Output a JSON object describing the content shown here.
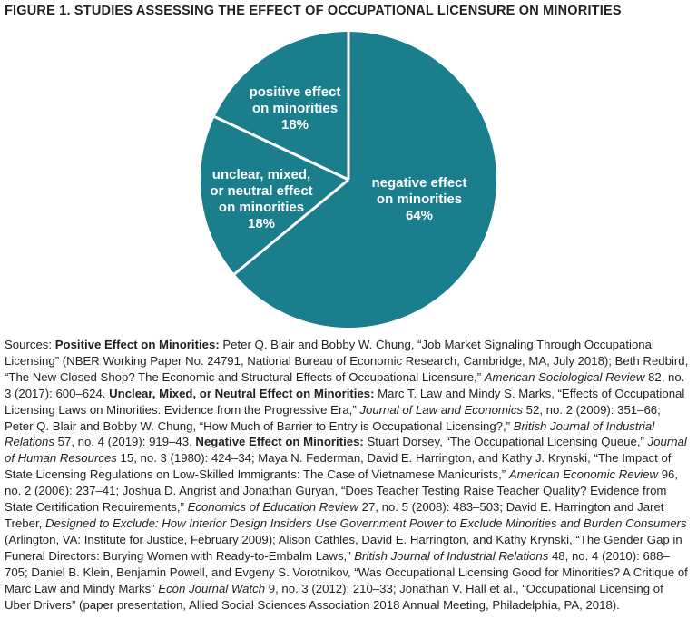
{
  "figure_title": "FIGURE 1. STUDIES ASSESSING THE EFFECT OF OCCUPATIONAL LICENSURE ON MINORITIES",
  "chart_data": {
    "type": "pie",
    "title": "FIGURE 1. STUDIES ASSESSING THE EFFECT OF OCCUPATIONAL LICENSURE ON MINORITIES",
    "start_angle_deg_from_top": 0,
    "direction": "clockwise",
    "legend_position": "labels-on-slices",
    "slices": [
      {
        "label": "negative effect on minorities",
        "value": 64,
        "percent_label": "64%",
        "label_lines": [
          "negative effect",
          "on minorities",
          "64%"
        ]
      },
      {
        "label": "unclear, mixed, or neutral effect on minorities",
        "value": 18,
        "percent_label": "18%",
        "label_lines": [
          "unclear, mixed,",
          "or neutral effect",
          "on minorities",
          "18%"
        ]
      },
      {
        "label": "positive effect on minorities",
        "value": 18,
        "percent_label": "18%",
        "label_lines": [
          "positive effect",
          "on minorities",
          "18%"
        ]
      }
    ],
    "colors": {
      "slice_fill": "#1B7E8C",
      "divider": "#FFFFFF",
      "label_text": "#FFFFFF",
      "title_text": "#231F20",
      "body_text": "#231F20"
    }
  },
  "sources": {
    "segments": [
      {
        "t": "Sources: ",
        "s": "n"
      },
      {
        "t": "Positive Effect on Minorities: ",
        "s": "b"
      },
      {
        "t": "Peter Q. Blair and Bobby W. Chung, “Job Market Signaling Through Occupational Licensing” (NBER Working Paper No. 24791, National Bureau of Economic Research, Cambridge, MA, July 2018); Beth Redbird, “The New Closed Shop? The Economic and Structural Effects of Occupational Licensure,” ",
        "s": "n"
      },
      {
        "t": "American Sociological Review",
        "s": "i"
      },
      {
        "t": " 82, no. 3 (2017): 600–624. ",
        "s": "n"
      },
      {
        "t": "Unclear, Mixed, or Neutral Effect on Minorities: ",
        "s": "b"
      },
      {
        "t": "Marc T. Law and Mindy S. Marks, “Effects of Occupational Licensing Laws on Minorities: Evidence from the Progressive Era,” ",
        "s": "n"
      },
      {
        "t": "Journal of Law and Economics",
        "s": "i"
      },
      {
        "t": " 52, no. 2 (2009): 351–66; Peter Q. Blair and Bobby W. Chung, “How Much of Barrier to Entry is Occupational Licensing?,” ",
        "s": "n"
      },
      {
        "t": "British Journal of Industrial Relations",
        "s": "i"
      },
      {
        "t": " 57, no. 4 (2019): 919–43. ",
        "s": "n"
      },
      {
        "t": "Negative Effect on Minorities: ",
        "s": "b"
      },
      {
        "t": "Stuart Dorsey, “The Occupational Licensing Queue,” ",
        "s": "n"
      },
      {
        "t": "Journal of Human Resources",
        "s": "i"
      },
      {
        "t": " 15, no. 3 (1980): 424–34; Maya N. Federman, David E. Harrington, and Kathy J. Krynski, “The Impact of State Licensing Regulations on Low-Skilled Immigrants: The Case of Vietnamese Manicurists,” ",
        "s": "n"
      },
      {
        "t": "American Economic Review",
        "s": "i"
      },
      {
        "t": " 96, no. 2 (2006): 237–41; Joshua D. Angrist and Jonathan Guryan, “Does Teacher Testing Raise Teacher Quality? Evidence from State Certification Requirements,” ",
        "s": "n"
      },
      {
        "t": "Economics of Education Review",
        "s": "i"
      },
      {
        "t": " 27, no. 5 (2008): 483–503; David E. Harrington and Jaret Treber, ",
        "s": "n"
      },
      {
        "t": "Designed to Exclude: How Interior Design Insiders Use Government Power to Exclude Minorities and Burden Consumers",
        "s": "i"
      },
      {
        "t": " (Arlington, VA: Institute for Justice, February 2009); Alison Cathles, David E. Harrington, and Kathy Krynski, “The Gender Gap in Funeral Directors: Burying Women with Ready-to-Embalm Laws,” ",
        "s": "n"
      },
      {
        "t": "British Journal of Industrial Relations",
        "s": "i"
      },
      {
        "t": " 48, no. 4 (2010): 688–705; Daniel B. Klein, Benjamin Powell, and Evgeny S. Vorotnikov, “Was Occupational Licensing Good for Minorities? A Critique of Marc Law and Mindy Marks” ",
        "s": "n"
      },
      {
        "t": "Econ Journal Watch",
        "s": "i"
      },
      {
        "t": " 9, no. 3 (2012): 210–33; Jonathan V. Hall et al., “Occupational Licensing of Uber Drivers” (paper presentation, Allied Social Sciences Association 2018 Annual Meeting, Philadelphia, PA, 2018).",
        "s": "n"
      }
    ]
  }
}
